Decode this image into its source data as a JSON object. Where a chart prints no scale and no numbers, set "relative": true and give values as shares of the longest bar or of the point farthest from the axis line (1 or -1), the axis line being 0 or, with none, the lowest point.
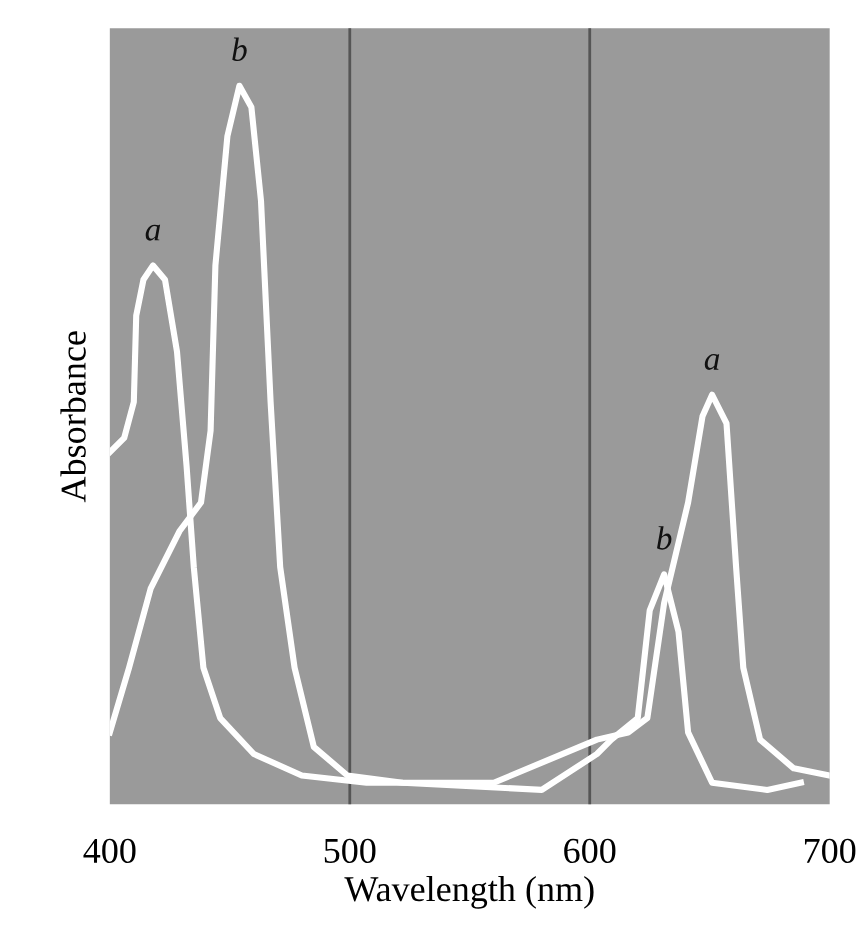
{
  "chart_data": {
    "type": "line",
    "relative": true,
    "xlabel": "Wavelength (nm)",
    "ylabel": "Absorbance",
    "xlim": [
      400,
      700
    ],
    "xticks": [
      400,
      500,
      600,
      700
    ],
    "tick_labels": "x",
    "grid": false,
    "legend": false,
    "marker": "none",
    "line_style": "solid",
    "series": [
      {
        "name": "a",
        "color": "#ffffff",
        "x": [
          400,
          406,
          410,
          411,
          414,
          418,
          423,
          428,
          432,
          435,
          439,
          446,
          460,
          480,
          507,
          560,
          603,
          616,
          624,
          631,
          641,
          647,
          651,
          657,
          661,
          664,
          671,
          685,
          700
        ],
        "values": [
          0.49,
          0.51,
          0.56,
          0.68,
          0.73,
          0.75,
          0.73,
          0.63,
          0.47,
          0.33,
          0.19,
          0.12,
          0.07,
          0.04,
          0.03,
          0.03,
          0.09,
          0.1,
          0.12,
          0.28,
          0.42,
          0.54,
          0.57,
          0.53,
          0.33,
          0.19,
          0.09,
          0.05,
          0.04
        ]
      },
      {
        "name": "b",
        "color": "#ffffff",
        "x": [
          400,
          408,
          417,
          429,
          438,
          442,
          444,
          449,
          454,
          459,
          463,
          467,
          471,
          477,
          485,
          499,
          522,
          580,
          603,
          609,
          620,
          625,
          631,
          637,
          641,
          651,
          674,
          688
        ],
        "values": [
          0.1,
          0.19,
          0.3,
          0.38,
          0.42,
          0.52,
          0.75,
          0.93,
          1.0,
          0.97,
          0.84,
          0.56,
          0.33,
          0.19,
          0.08,
          0.04,
          0.03,
          0.02,
          0.07,
          0.09,
          0.12,
          0.27,
          0.32,
          0.24,
          0.1,
          0.03,
          0.02,
          0.03
        ]
      }
    ],
    "ref_lines": [
      {
        "axis": "x",
        "value": 500,
        "color": "#555555"
      },
      {
        "axis": "x",
        "value": 600,
        "color": "#555555"
      }
    ],
    "annotations": [
      {
        "text": "a",
        "x": 651,
        "y": 0.57
      },
      {
        "text": "b",
        "x": 631,
        "y": 0.32
      }
    ]
  }
}
